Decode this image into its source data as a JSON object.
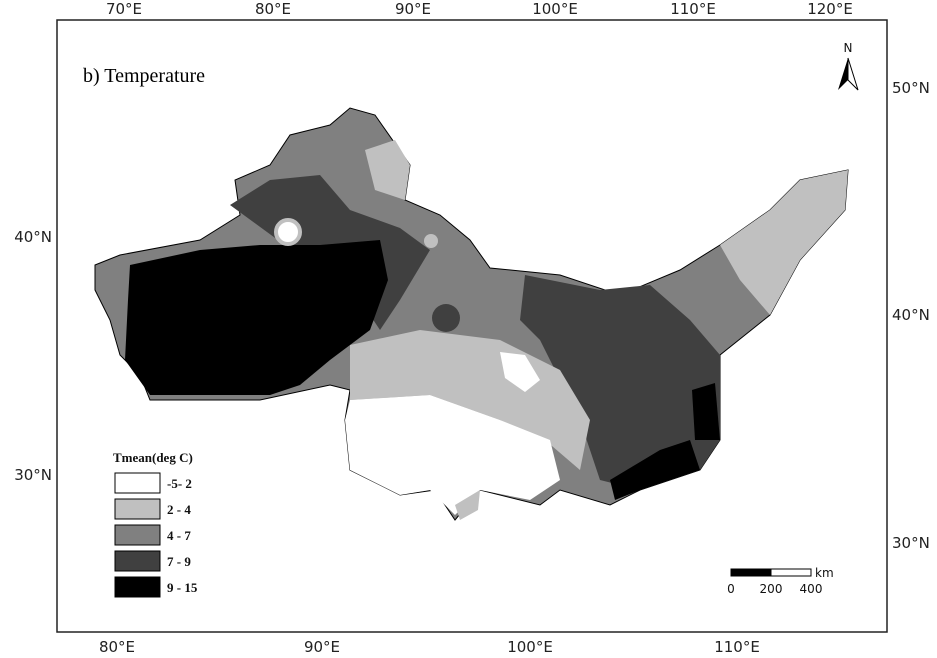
{
  "title": "b) Temperature",
  "axes": {
    "top": [
      "70°E",
      "80°E",
      "90°E",
      "100°E",
      "110°E",
      "120°E"
    ],
    "bottom": [
      "80°E",
      "90°E",
      "100°E",
      "110°E"
    ],
    "left": [
      "40°N",
      "30°N"
    ],
    "right": [
      "50°N",
      "40°N",
      "30°N"
    ]
  },
  "north_arrow": "N",
  "legend": {
    "title": "Tmean(deg C)",
    "items": [
      "-5- 2",
      "2 - 4",
      "4 - 7",
      "7 - 9",
      "9 - 15"
    ]
  },
  "scale_bar": {
    "unit": "km",
    "labels": [
      "0",
      "200",
      "400"
    ]
  }
}
